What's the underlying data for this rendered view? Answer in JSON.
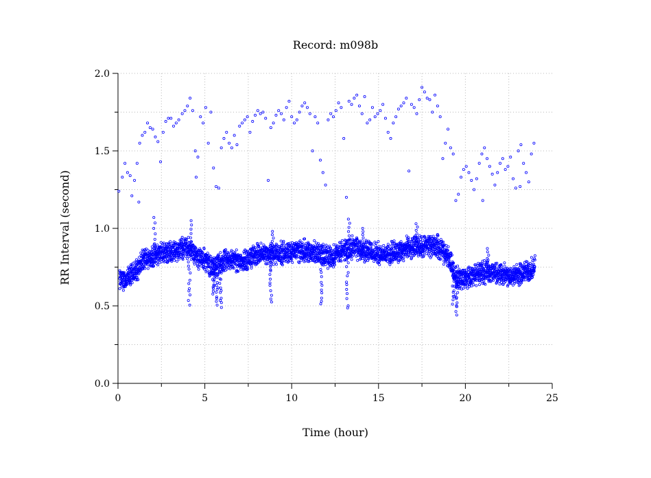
{
  "chart_data": {
    "type": "scatter",
    "title": "Record:  m098b",
    "xlabel": "Time (hour)",
    "ylabel": "RR Interval (second)",
    "xlim": [
      0,
      25
    ],
    "ylim": [
      0,
      2.0
    ],
    "x_ticks": [
      "0",
      "5",
      "10",
      "15",
      "20",
      "25"
    ],
    "y_ticks": [
      "0.0",
      "0.5",
      "1.0",
      "1.5",
      "2.0"
    ],
    "grid": true,
    "marker_color": "#0000ff",
    "series": [
      {
        "points": [
          [
            0.05,
            1.24
          ],
          [
            0.25,
            1.33
          ],
          [
            0.4,
            1.42
          ],
          [
            0.55,
            1.36
          ],
          [
            0.7,
            1.34
          ],
          [
            0.8,
            1.21
          ],
          [
            0.95,
            1.31
          ],
          [
            1.1,
            1.42
          ],
          [
            1.25,
            1.55
          ],
          [
            1.4,
            1.6
          ],
          [
            1.55,
            1.62
          ],
          [
            1.7,
            1.68
          ],
          [
            1.85,
            1.65
          ],
          [
            2.0,
            1.64
          ],
          [
            2.15,
            1.59
          ],
          [
            2.3,
            1.56
          ],
          [
            2.45,
            1.43
          ],
          [
            2.6,
            1.62
          ],
          [
            2.75,
            1.69
          ],
          [
            2.9,
            1.71
          ],
          [
            3.05,
            1.71
          ],
          [
            3.2,
            1.66
          ],
          [
            3.35,
            1.68
          ],
          [
            3.5,
            1.7
          ],
          [
            3.7,
            1.74
          ],
          [
            3.85,
            1.76
          ],
          [
            4.0,
            1.79
          ],
          [
            4.15,
            1.84
          ],
          [
            4.3,
            1.76
          ],
          [
            4.45,
            1.5
          ],
          [
            4.6,
            1.46
          ],
          [
            4.75,
            1.72
          ],
          [
            4.9,
            1.68
          ],
          [
            5.05,
            1.78
          ],
          [
            5.2,
            1.55
          ],
          [
            5.35,
            1.75
          ],
          [
            5.5,
            1.39
          ],
          [
            5.65,
            1.27
          ],
          [
            5.8,
            1.26
          ],
          [
            5.95,
            1.52
          ],
          [
            6.1,
            1.58
          ],
          [
            6.25,
            1.62
          ],
          [
            6.4,
            1.55
          ],
          [
            6.55,
            1.52
          ],
          [
            6.7,
            1.6
          ],
          [
            6.85,
            1.54
          ],
          [
            7.0,
            1.66
          ],
          [
            7.15,
            1.68
          ],
          [
            7.3,
            1.7
          ],
          [
            7.45,
            1.72
          ],
          [
            7.6,
            1.62
          ],
          [
            7.75,
            1.69
          ],
          [
            7.9,
            1.73
          ],
          [
            8.05,
            1.76
          ],
          [
            8.2,
            1.74
          ],
          [
            8.35,
            1.75
          ],
          [
            8.5,
            1.71
          ],
          [
            8.65,
            1.31
          ],
          [
            8.8,
            1.65
          ],
          [
            8.95,
            1.68
          ],
          [
            9.1,
            1.73
          ],
          [
            9.25,
            1.76
          ],
          [
            9.4,
            1.74
          ],
          [
            9.55,
            1.7
          ],
          [
            9.7,
            1.78
          ],
          [
            9.85,
            1.82
          ],
          [
            10.0,
            1.72
          ],
          [
            10.15,
            1.68
          ],
          [
            10.3,
            1.7
          ],
          [
            10.45,
            1.75
          ],
          [
            10.6,
            1.79
          ],
          [
            10.75,
            1.81
          ],
          [
            10.9,
            1.78
          ],
          [
            11.05,
            1.74
          ],
          [
            11.2,
            1.5
          ],
          [
            11.35,
            1.72
          ],
          [
            11.5,
            1.68
          ],
          [
            11.65,
            1.44
          ],
          [
            11.8,
            1.36
          ],
          [
            11.95,
            1.28
          ],
          [
            12.1,
            1.7
          ],
          [
            12.25,
            1.74
          ],
          [
            12.4,
            1.72
          ],
          [
            12.55,
            1.76
          ],
          [
            12.7,
            1.81
          ],
          [
            12.85,
            1.78
          ],
          [
            13.0,
            1.58
          ],
          [
            13.15,
            1.2
          ],
          [
            13.3,
            1.82
          ],
          [
            13.45,
            1.8
          ],
          [
            13.6,
            1.84
          ],
          [
            13.75,
            1.86
          ],
          [
            13.9,
            1.79
          ],
          [
            14.05,
            1.74
          ],
          [
            14.2,
            1.85
          ],
          [
            14.35,
            1.68
          ],
          [
            14.5,
            1.7
          ],
          [
            14.65,
            1.78
          ],
          [
            14.8,
            1.72
          ],
          [
            14.95,
            1.74
          ],
          [
            15.1,
            1.76
          ],
          [
            15.25,
            1.8
          ],
          [
            15.4,
            1.71
          ],
          [
            15.55,
            1.62
          ],
          [
            15.7,
            1.58
          ],
          [
            15.85,
            1.68
          ],
          [
            16.0,
            1.72
          ],
          [
            16.15,
            1.77
          ],
          [
            16.3,
            1.79
          ],
          [
            16.45,
            1.81
          ],
          [
            16.6,
            1.84
          ],
          [
            16.75,
            1.37
          ],
          [
            16.9,
            1.8
          ],
          [
            17.05,
            1.78
          ],
          [
            17.2,
            1.74
          ],
          [
            17.35,
            1.83
          ],
          [
            17.5,
            1.91
          ],
          [
            17.65,
            1.88
          ],
          [
            17.8,
            1.84
          ],
          [
            17.95,
            1.83
          ],
          [
            18.1,
            1.75
          ],
          [
            18.25,
            1.86
          ],
          [
            18.4,
            1.79
          ],
          [
            18.55,
            1.72
          ],
          [
            18.7,
            1.45
          ],
          [
            18.85,
            1.55
          ],
          [
            19.0,
            1.64
          ],
          [
            19.15,
            1.52
          ],
          [
            19.3,
            1.48
          ],
          [
            19.45,
            1.18
          ],
          [
            19.6,
            1.22
          ],
          [
            19.75,
            1.33
          ],
          [
            19.9,
            1.38
          ],
          [
            20.05,
            1.4
          ],
          [
            20.2,
            1.36
          ],
          [
            20.35,
            1.31
          ],
          [
            20.5,
            1.25
          ],
          [
            20.65,
            1.32
          ],
          [
            20.8,
            1.42
          ],
          [
            20.95,
            1.48
          ],
          [
            21.1,
            1.52
          ],
          [
            21.25,
            1.45
          ],
          [
            21.4,
            1.4
          ],
          [
            21.55,
            1.35
          ],
          [
            21.7,
            1.28
          ],
          [
            21.85,
            1.36
          ],
          [
            22.0,
            1.42
          ],
          [
            22.15,
            1.45
          ],
          [
            22.3,
            1.38
          ],
          [
            22.45,
            1.4
          ],
          [
            22.6,
            1.46
          ],
          [
            22.75,
            1.32
          ],
          [
            22.9,
            1.26
          ],
          [
            23.05,
            1.5
          ],
          [
            23.2,
            1.54
          ],
          [
            23.35,
            1.42
          ],
          [
            23.5,
            1.36
          ],
          [
            23.65,
            1.3
          ],
          [
            23.8,
            1.48
          ],
          [
            23.95,
            1.55
          ],
          [
            1.2,
            1.17
          ],
          [
            21.0,
            1.18
          ],
          [
            4.5,
            1.33
          ],
          [
            23.15,
            1.27
          ]
        ],
        "band_centre": [
          [
            0,
            0.66
          ],
          [
            0.5,
            0.67
          ],
          [
            1.0,
            0.72
          ],
          [
            1.5,
            0.8
          ],
          [
            2.0,
            0.82
          ],
          [
            2.5,
            0.84
          ],
          [
            3.0,
            0.85
          ],
          [
            3.5,
            0.86
          ],
          [
            4.0,
            0.88
          ],
          [
            4.5,
            0.82
          ],
          [
            5.0,
            0.8
          ],
          [
            5.5,
            0.74
          ],
          [
            6.0,
            0.78
          ],
          [
            6.5,
            0.8
          ],
          [
            7.0,
            0.79
          ],
          [
            7.5,
            0.8
          ],
          [
            8.0,
            0.83
          ],
          [
            8.5,
            0.84
          ],
          [
            9.0,
            0.83
          ],
          [
            9.5,
            0.84
          ],
          [
            10.0,
            0.85
          ],
          [
            10.5,
            0.86
          ],
          [
            11.0,
            0.85
          ],
          [
            11.5,
            0.84
          ],
          [
            12.0,
            0.82
          ],
          [
            12.5,
            0.83
          ],
          [
            13.0,
            0.86
          ],
          [
            13.5,
            0.88
          ],
          [
            14.0,
            0.86
          ],
          [
            14.5,
            0.85
          ],
          [
            15.0,
            0.84
          ],
          [
            15.5,
            0.83
          ],
          [
            16.0,
            0.85
          ],
          [
            16.5,
            0.87
          ],
          [
            17.0,
            0.88
          ],
          [
            17.5,
            0.88
          ],
          [
            18.0,
            0.89
          ],
          [
            18.5,
            0.88
          ],
          [
            19.0,
            0.82
          ],
          [
            19.5,
            0.68
          ],
          [
            20.0,
            0.68
          ],
          [
            20.5,
            0.7
          ],
          [
            21.0,
            0.72
          ],
          [
            21.5,
            0.72
          ],
          [
            22.0,
            0.71
          ],
          [
            22.5,
            0.7
          ],
          [
            23.0,
            0.7
          ],
          [
            23.5,
            0.72
          ],
          [
            24.0,
            0.75
          ]
        ],
        "band_half_width": 0.07,
        "dips": [
          [
            4.1,
            0.51
          ],
          [
            5.7,
            0.5
          ],
          [
            5.9,
            0.49
          ],
          [
            8.8,
            0.53
          ],
          [
            11.7,
            0.51
          ],
          [
            13.2,
            0.48
          ],
          [
            19.5,
            0.45
          ],
          [
            5.5,
            0.58
          ],
          [
            19.3,
            0.52
          ]
        ],
        "spikes": [
          [
            2.1,
            1.07
          ],
          [
            4.2,
            1.05
          ],
          [
            13.3,
            1.06
          ],
          [
            17.2,
            1.03
          ],
          [
            21.3,
            0.87
          ],
          [
            8.9,
            0.98
          ],
          [
            14.1,
            1.0
          ]
        ]
      }
    ]
  }
}
